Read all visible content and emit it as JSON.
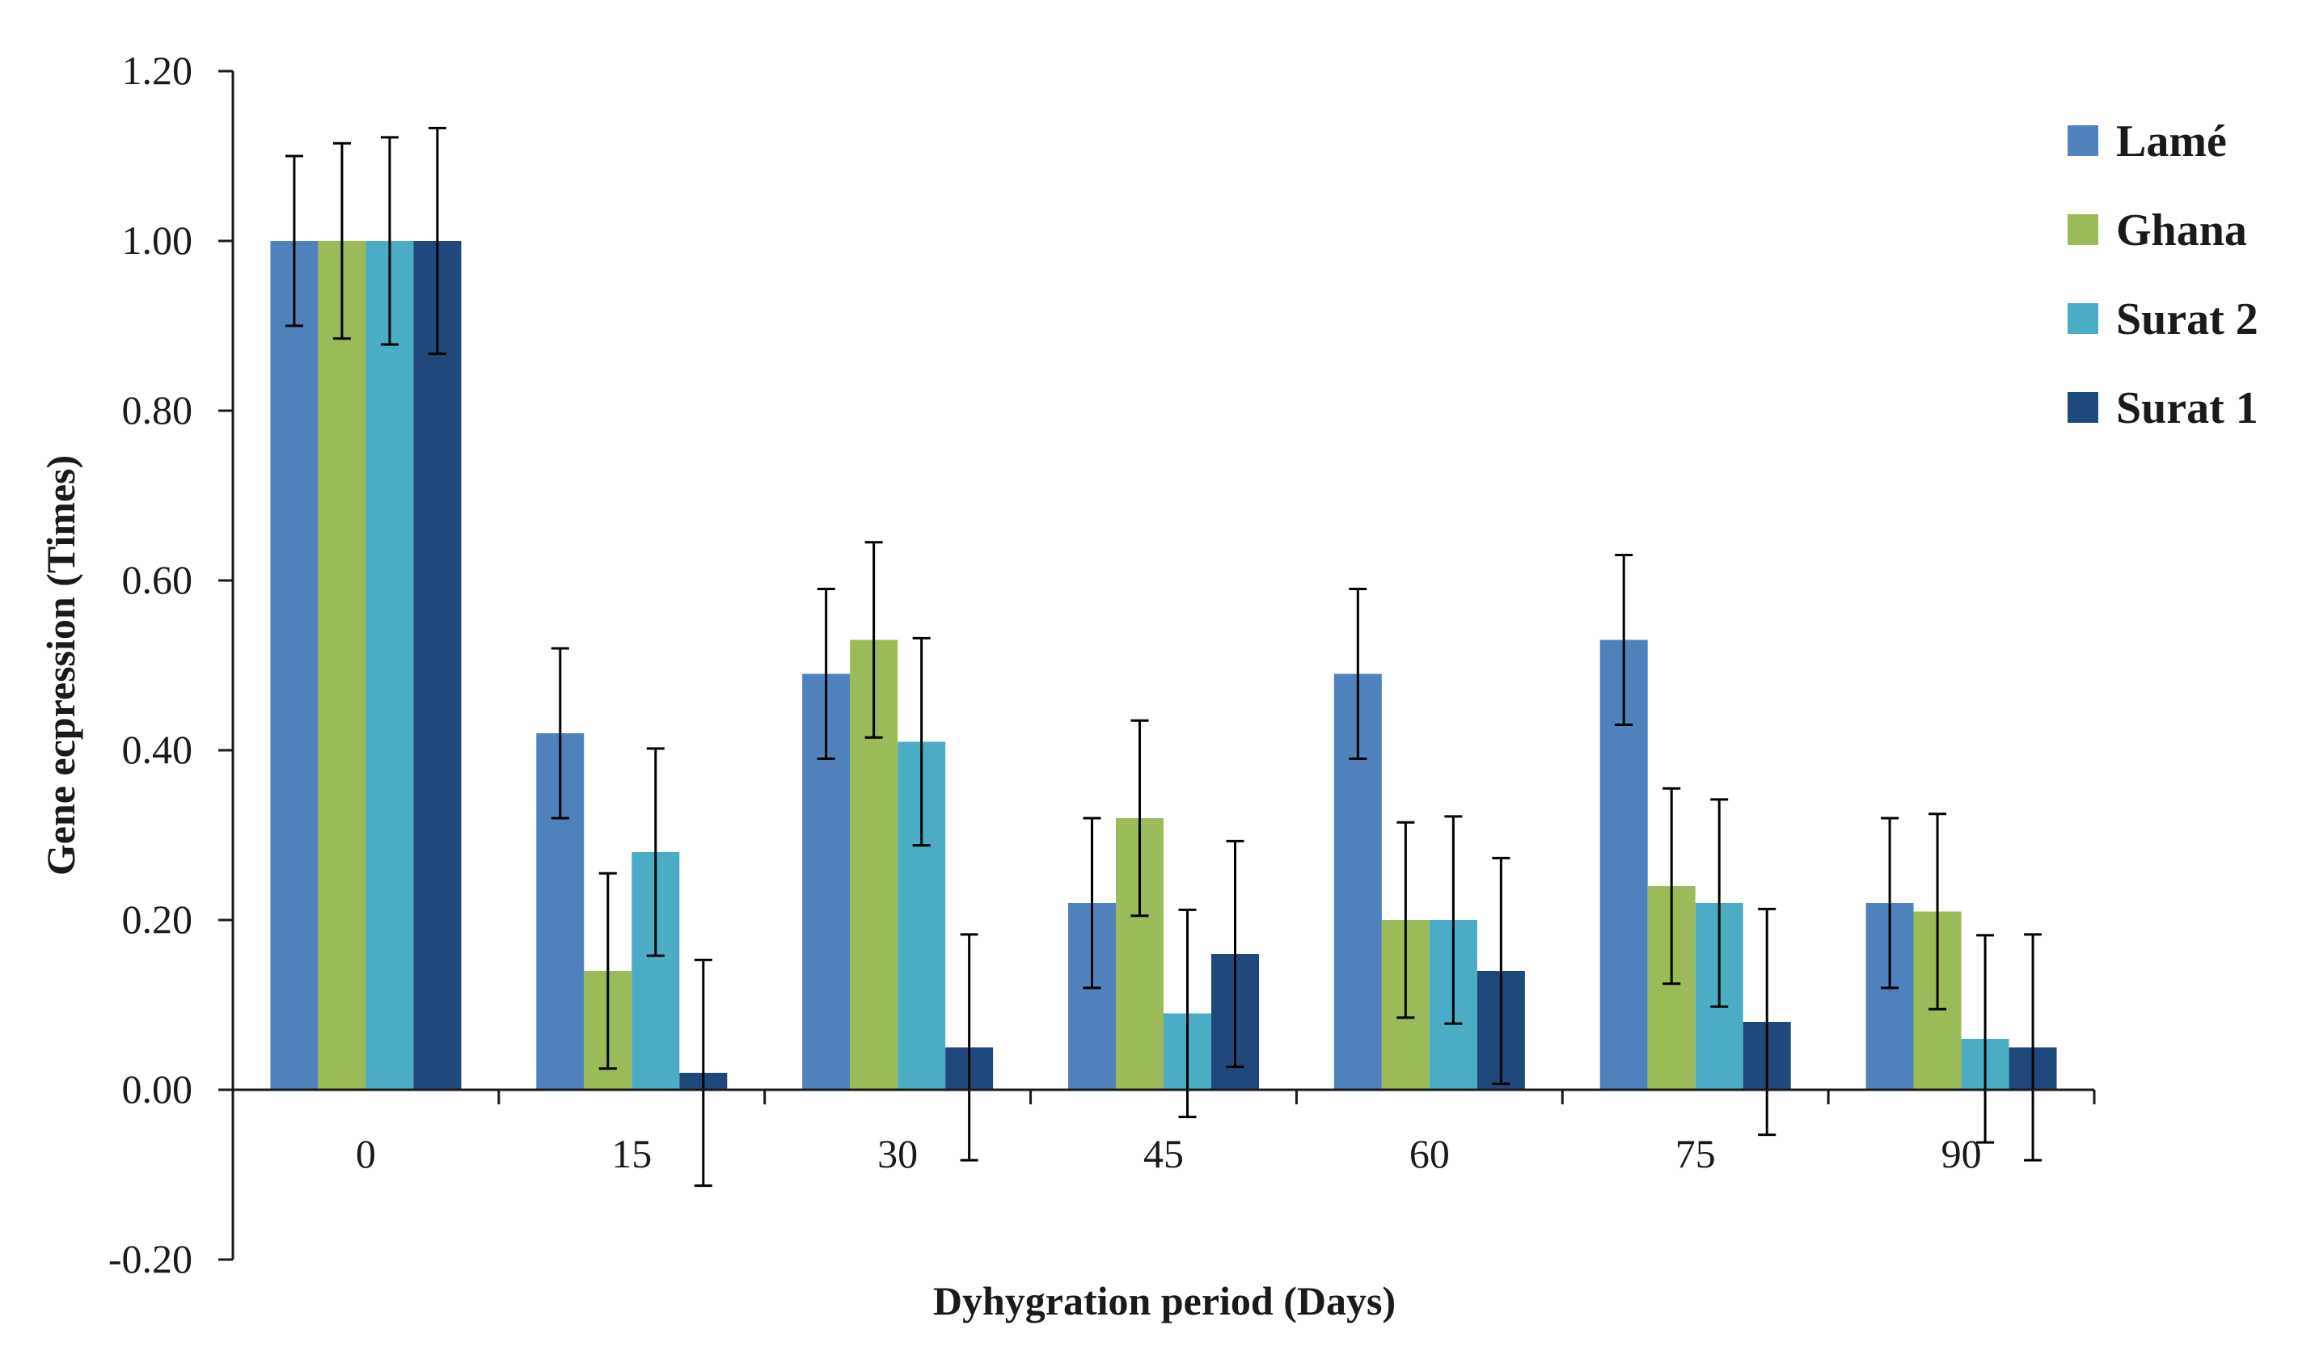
{
  "chart_data": {
    "type": "bar",
    "title": "",
    "xlabel": "Dyhygration period (Days)",
    "ylabel": "Gene ecpression (Times)",
    "ylim": [
      -0.2,
      1.2
    ],
    "yticks": [
      -0.2,
      0.0,
      0.2,
      0.4,
      0.6,
      0.8,
      1.0,
      1.2
    ],
    "ytick_labels": [
      "-0.20",
      "0.00",
      "0.20",
      "0.40",
      "0.60",
      "0.80",
      "1.00",
      "1.20"
    ],
    "categories": [
      "0",
      "15",
      "30",
      "45",
      "60",
      "75",
      "90"
    ],
    "grid": false,
    "legend_position": "top-right",
    "series": [
      {
        "name": "Lamé",
        "color": "#4f81bd",
        "values": [
          1.0,
          0.42,
          0.49,
          0.22,
          0.49,
          0.53,
          0.22
        ],
        "errors": [
          0.1,
          0.1,
          0.1,
          0.1,
          0.1,
          0.1,
          0.1
        ]
      },
      {
        "name": "Ghana",
        "color": "#9bbb59",
        "values": [
          1.0,
          0.14,
          0.53,
          0.32,
          0.2,
          0.24,
          0.21
        ],
        "errors": [
          0.115,
          0.115,
          0.115,
          0.115,
          0.115,
          0.115,
          0.115
        ]
      },
      {
        "name": "Surat 2",
        "color": "#4bacc6",
        "values": [
          1.0,
          0.28,
          0.41,
          0.09,
          0.2,
          0.22,
          0.06
        ],
        "errors": [
          0.122,
          0.122,
          0.122,
          0.122,
          0.122,
          0.122,
          0.122
        ]
      },
      {
        "name": "Surat 1",
        "color": "#1f497d",
        "values": [
          1.0,
          0.02,
          0.05,
          0.16,
          0.14,
          0.08,
          0.05
        ],
        "errors": [
          0.133,
          0.133,
          0.133,
          0.133,
          0.133,
          0.133,
          0.133
        ]
      }
    ]
  }
}
